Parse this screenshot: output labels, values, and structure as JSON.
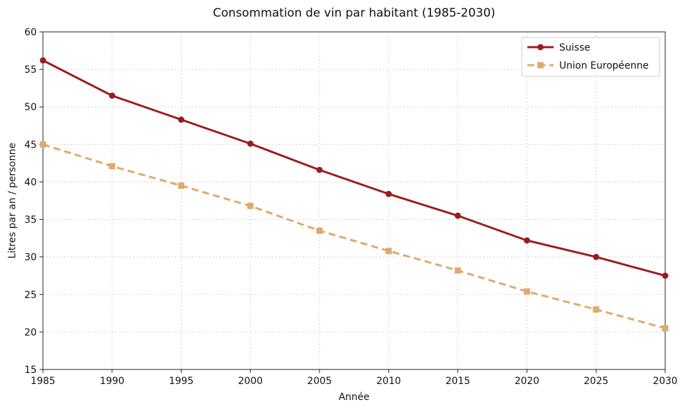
{
  "chart_data": {
    "type": "line",
    "title": "Consommation de vin par habitant (1985-2030)",
    "xlabel": "Année",
    "ylabel": "Litres par an / personne",
    "x": [
      1985,
      1990,
      1995,
      2000,
      2005,
      2010,
      2015,
      2020,
      2025,
      2030
    ],
    "xlim": [
      1985,
      2030
    ],
    "ylim": [
      15,
      60
    ],
    "x_ticks": [
      "1985",
      "1990",
      "1995",
      "2000",
      "2005",
      "2010",
      "2015",
      "2020",
      "2025",
      "2030"
    ],
    "y_ticks": [
      "15",
      "20",
      "25",
      "30",
      "35",
      "40",
      "45",
      "50",
      "55",
      "60"
    ],
    "grid": true,
    "legend_position": "top-right",
    "series": [
      {
        "name": "Suisse",
        "values": [
          56.2,
          51.5,
          48.3,
          45.1,
          41.6,
          38.4,
          35.5,
          32.2,
          30.0,
          27.5
        ],
        "color": "#9b1c1c",
        "line_style": "solid",
        "marker": "circle"
      },
      {
        "name": "Union Européenne",
        "values": [
          45.0,
          42.1,
          39.5,
          36.8,
          33.5,
          30.8,
          28.2,
          25.4,
          23.0,
          20.5
        ],
        "color": "#e0a96d",
        "line_style": "dashed",
        "marker": "square"
      }
    ]
  }
}
